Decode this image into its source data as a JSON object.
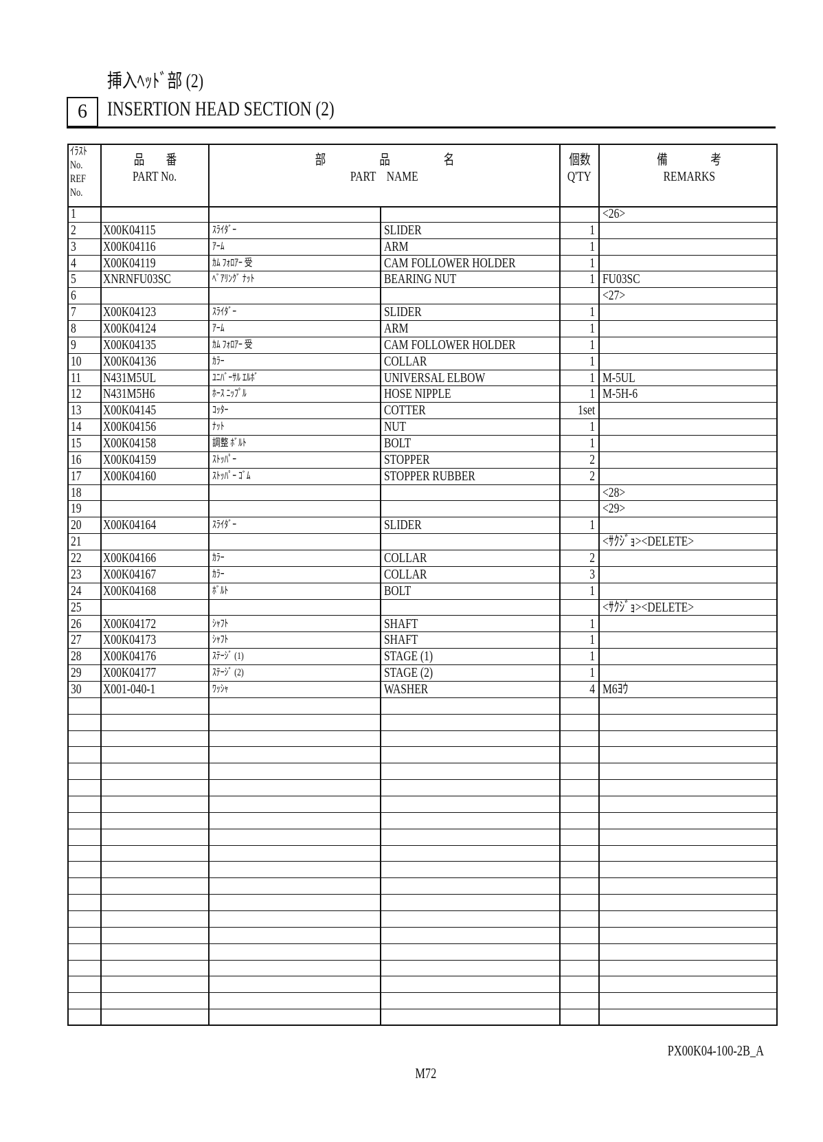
{
  "header": {
    "title_jp": "挿入ﾍｯﾄﾞ部 (2)",
    "section_number": "6",
    "title_en": "INSERTION HEAD SECTION (2)"
  },
  "table": {
    "columns": {
      "ref_jp": "ｲﾗｽﾄ",
      "ref_no1": "No.",
      "ref_en": "REF",
      "ref_no2": "No.",
      "part_no_jp": "品　　番",
      "part_no_en": "PART No.",
      "part_name_jp": "部　　　　　品　　　　　名",
      "part_name_en": "PART　NAME",
      "qty_jp": "個数",
      "qty_en": "Q'TY",
      "remarks_jp": "備　　　　考",
      "remarks_en": "REMARKS"
    },
    "rows": [
      {
        "ref": "1",
        "part_no": "",
        "name_jp": "",
        "name_en": "",
        "qty": "",
        "remarks": "<26>"
      },
      {
        "ref": "2",
        "part_no": "X00K04115",
        "name_jp": "ｽﾗｲﾀﾞｰ",
        "name_en": "SLIDER",
        "qty": "1",
        "remarks": ""
      },
      {
        "ref": "3",
        "part_no": "X00K04116",
        "name_jp": "ｱｰﾑ",
        "name_en": "ARM",
        "qty": "1",
        "remarks": ""
      },
      {
        "ref": "4",
        "part_no": "X00K04119",
        "name_jp": "ｶﾑ ﾌｫﾛｱｰ 受",
        "name_en": "CAM FOLLOWER HOLDER",
        "qty": "1",
        "remarks": ""
      },
      {
        "ref": "5",
        "part_no": "XNRNFU03SC",
        "name_jp": "ﾍﾞｱﾘﾝｸﾞ ﾅｯﾄ",
        "name_en": "BEARING NUT",
        "qty": "1",
        "remarks": "FU03SC"
      },
      {
        "ref": "6",
        "part_no": "",
        "name_jp": "",
        "name_en": "",
        "qty": "",
        "remarks": "<27>"
      },
      {
        "ref": "7",
        "part_no": "X00K04123",
        "name_jp": "ｽﾗｲﾀﾞｰ",
        "name_en": "SLIDER",
        "qty": "1",
        "remarks": ""
      },
      {
        "ref": "8",
        "part_no": "X00K04124",
        "name_jp": "ｱｰﾑ",
        "name_en": "ARM",
        "qty": "1",
        "remarks": ""
      },
      {
        "ref": "9",
        "part_no": "X00K04135",
        "name_jp": "ｶﾑ ﾌｫﾛｱｰ 受",
        "name_en": "CAM FOLLOWER HOLDER",
        "qty": "1",
        "remarks": ""
      },
      {
        "ref": "10",
        "part_no": "X00K04136",
        "name_jp": "ｶﾗｰ",
        "name_en": "COLLAR",
        "qty": "1",
        "remarks": ""
      },
      {
        "ref": "11",
        "part_no": "N431M5UL",
        "name_jp": "ﾕﾆﾊﾞｰｻﾙ ｴﾙﾎﾞ",
        "name_en": "UNIVERSAL ELBOW",
        "qty": "1",
        "remarks": "M-5UL"
      },
      {
        "ref": "12",
        "part_no": "N431M5H6",
        "name_jp": "ﾎｰｽ ﾆｯﾌﾟﾙ",
        "name_en": "HOSE NIPPLE",
        "qty": "1",
        "remarks": "M-5H-6"
      },
      {
        "ref": "13",
        "part_no": "X00K04145",
        "name_jp": "ｺｯﾀｰ",
        "name_en": "COTTER",
        "qty": "1set",
        "remarks": ""
      },
      {
        "ref": "14",
        "part_no": "X00K04156",
        "name_jp": "ﾅｯﾄ",
        "name_en": "NUT",
        "qty": "1",
        "remarks": ""
      },
      {
        "ref": "15",
        "part_no": "X00K04158",
        "name_jp": "調整 ﾎﾞﾙﾄ",
        "name_en": "BOLT",
        "qty": "1",
        "remarks": ""
      },
      {
        "ref": "16",
        "part_no": "X00K04159",
        "name_jp": "ｽﾄｯﾊﾟｰ",
        "name_en": "STOPPER",
        "qty": "2",
        "remarks": ""
      },
      {
        "ref": "17",
        "part_no": "X00K04160",
        "name_jp": "ｽﾄｯﾊﾟｰ ｺﾞﾑ",
        "name_en": "STOPPER RUBBER",
        "qty": "2",
        "remarks": ""
      },
      {
        "ref": "18",
        "part_no": "",
        "name_jp": "",
        "name_en": "",
        "qty": "",
        "remarks": "<28>"
      },
      {
        "ref": "19",
        "part_no": "",
        "name_jp": "",
        "name_en": "",
        "qty": "",
        "remarks": "<29>"
      },
      {
        "ref": "20",
        "part_no": "X00K04164",
        "name_jp": "ｽﾗｲﾀﾞｰ",
        "name_en": "SLIDER",
        "qty": "1",
        "remarks": ""
      },
      {
        "ref": "21",
        "part_no": "",
        "name_jp": "",
        "name_en": "",
        "qty": "",
        "remarks": "<ｻｸｼﾞｮ><DELETE>"
      },
      {
        "ref": "22",
        "part_no": "X00K04166",
        "name_jp": "ｶﾗｰ",
        "name_en": "COLLAR",
        "qty": "2",
        "remarks": ""
      },
      {
        "ref": "23",
        "part_no": "X00K04167",
        "name_jp": "ｶﾗｰ",
        "name_en": "COLLAR",
        "qty": "3",
        "remarks": ""
      },
      {
        "ref": "24",
        "part_no": "X00K04168",
        "name_jp": "ﾎﾞﾙﾄ",
        "name_en": "BOLT",
        "qty": "1",
        "remarks": ""
      },
      {
        "ref": "25",
        "part_no": "",
        "name_jp": "",
        "name_en": "",
        "qty": "",
        "remarks": "<ｻｸｼﾞｮ><DELETE>"
      },
      {
        "ref": "26",
        "part_no": "X00K04172",
        "name_jp": "ｼｬﾌﾄ",
        "name_en": "SHAFT",
        "qty": "1",
        "remarks": ""
      },
      {
        "ref": "27",
        "part_no": "X00K04173",
        "name_jp": "ｼｬﾌﾄ",
        "name_en": "SHAFT",
        "qty": "1",
        "remarks": ""
      },
      {
        "ref": "28",
        "part_no": "X00K04176",
        "name_jp": "ｽﾃｰｼﾞ (1)",
        "name_en": "STAGE (1)",
        "qty": "1",
        "remarks": ""
      },
      {
        "ref": "29",
        "part_no": "X00K04177",
        "name_jp": "ｽﾃｰｼﾞ (2)",
        "name_en": "STAGE (2)",
        "qty": "1",
        "remarks": ""
      },
      {
        "ref": "30",
        "part_no": "X001-040-1",
        "name_jp": "ﾜｯｼｬ",
        "name_en": "WASHER",
        "qty": "4",
        "remarks": "M6ﾖｳ"
      }
    ],
    "empty_rows": 20
  },
  "footer": {
    "doc_code": "PX00K04-100-2B_A",
    "page": "M72"
  }
}
